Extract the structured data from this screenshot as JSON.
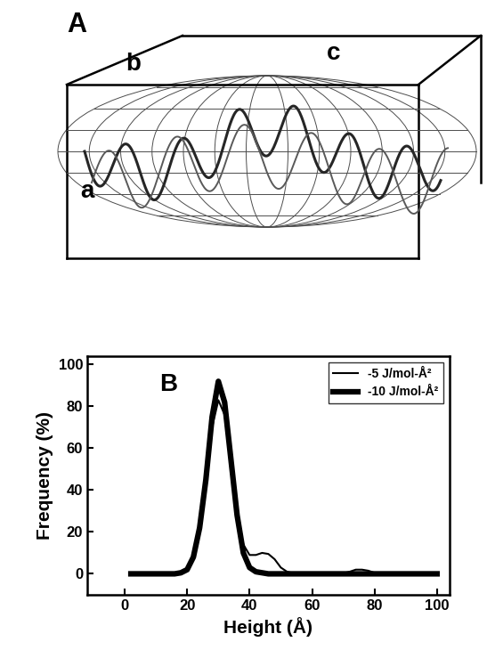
{
  "panel_a": {
    "label": "A",
    "axis_labels": {
      "a": "a",
      "b": "b",
      "c": "c"
    }
  },
  "chart_data": {
    "type": "line",
    "panel_label": "B",
    "x_label": "Height (Å)",
    "y_label": "Frequency (%)",
    "x": [
      2,
      4,
      6,
      8,
      10,
      12,
      14,
      16,
      18,
      20,
      22,
      24,
      26,
      28,
      30,
      32,
      34,
      36,
      38,
      40,
      42,
      44,
      46,
      48,
      50,
      52,
      54,
      56,
      58,
      60,
      62,
      64,
      66,
      68,
      70,
      72,
      74,
      76,
      78,
      80,
      82,
      84,
      86,
      88,
      90,
      92,
      94,
      96,
      98,
      100
    ],
    "series": [
      {
        "name": "-5 J/mol-Å²",
        "color": "#000000",
        "line_style": "solid",
        "values": [
          0,
          0,
          0,
          0,
          0,
          0,
          0,
          0,
          0.5,
          2,
          7,
          20,
          42,
          70,
          83,
          76,
          52,
          28,
          14,
          9,
          9,
          10,
          9.5,
          7,
          3,
          1,
          0.3,
          0,
          0,
          0,
          0,
          0,
          0,
          0,
          0.3,
          1,
          2,
          2,
          1.5,
          0.5,
          0,
          0,
          0,
          0,
          0,
          0,
          0,
          0,
          0,
          0
        ]
      },
      {
        "name": "-10 J/mol-Å²",
        "color": "#000000",
        "line_style": "solid",
        "values": [
          0,
          0,
          0,
          0,
          0,
          0,
          0,
          0,
          0.5,
          2,
          8,
          22,
          45,
          75,
          92,
          82,
          55,
          28,
          10,
          3,
          1,
          0.5,
          0,
          0,
          0,
          0,
          0,
          0,
          0,
          0,
          0,
          0,
          0,
          0,
          0,
          0,
          0,
          0,
          0,
          0,
          0,
          0,
          0,
          0,
          0,
          0,
          0,
          0,
          0,
          0
        ]
      }
    ],
    "xlim": [
      -12,
      104
    ],
    "ylim": [
      -10,
      104
    ],
    "xticks": [
      0,
      20,
      40,
      60,
      80,
      100
    ],
    "yticks": [
      0,
      20,
      40,
      60,
      80,
      100
    ],
    "legend": "upper right",
    "grid": false
  }
}
